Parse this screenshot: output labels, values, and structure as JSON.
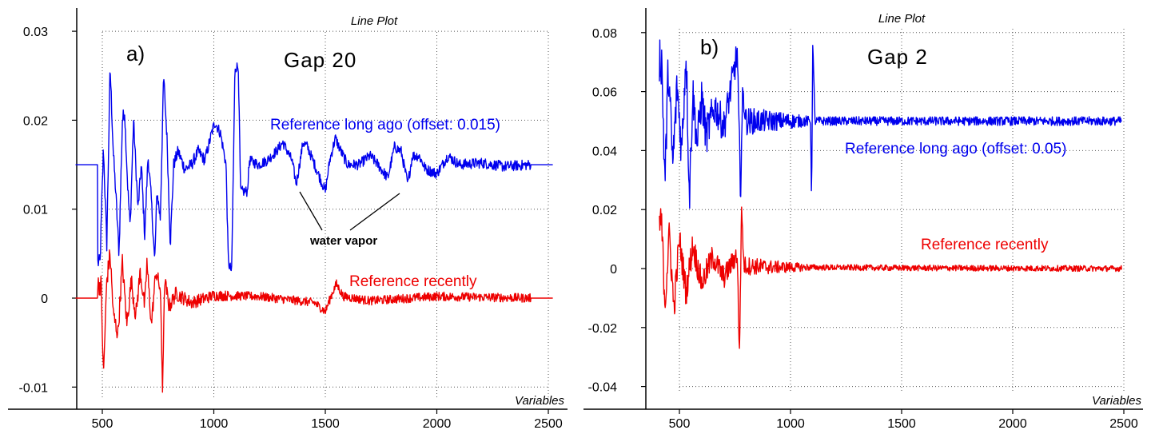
{
  "chart_data": [
    {
      "type": "line",
      "title": "Line Plot",
      "xlabel": "Variables",
      "ylabel": "",
      "panel_label": "a)",
      "heading": "Gap 20",
      "xlim": [
        380,
        2520
      ],
      "ylim": [
        -0.0125,
        0.031
      ],
      "x_ticks": [
        500,
        1000,
        1500,
        2000,
        2500
      ],
      "y_ticks": [
        -0.01,
        0,
        0.01,
        0.02,
        0.03
      ],
      "y_tick_labels": [
        "-0.01",
        "0",
        "0.01",
        "0.02",
        "0.03"
      ],
      "grid": true,
      "series": [
        {
          "label": "Reference long ago (offset: 0.015)",
          "color": "#0000ee",
          "baseline": 0.015,
          "x_range": [
            380,
            2520
          ],
          "flat_before": 480,
          "flat_after": 2420,
          "features": [
            [
              490,
              0.004
            ],
            [
              505,
              0.017
            ],
            [
              520,
              0.006
            ],
            [
              535,
              0.026
            ],
            [
              550,
              0.016
            ],
            [
              560,
              0.012
            ],
            [
              575,
              0.005
            ],
            [
              590,
              0.02
            ],
            [
              600,
              0.021
            ],
            [
              615,
              0.012
            ],
            [
              625,
              0.008
            ],
            [
              640,
              0.02
            ],
            [
              660,
              0.01
            ],
            [
              675,
              0.015
            ],
            [
              690,
              0.007
            ],
            [
              705,
              0.016
            ],
            [
              720,
              0.011
            ],
            [
              735,
              0.004
            ],
            [
              745,
              0.012
            ],
            [
              760,
              0.009
            ],
            [
              775,
              0.025
            ],
            [
              790,
              0.018
            ],
            [
              805,
              0.006
            ],
            [
              820,
              0.015
            ],
            [
              840,
              0.0165
            ],
            [
              870,
              0.0145
            ],
            [
              900,
              0.015
            ],
            [
              930,
              0.0165
            ],
            [
              960,
              0.0155
            ],
            [
              990,
              0.0185
            ],
            [
              1005,
              0.0198
            ],
            [
              1030,
              0.0185
            ],
            [
              1055,
              0.015
            ],
            [
              1065,
              0.004
            ],
            [
              1080,
              0.003
            ],
            [
              1095,
              0.026
            ],
            [
              1110,
              0.026
            ],
            [
              1120,
              0.012
            ],
            [
              1150,
              0.012
            ],
            [
              1160,
              0.0155
            ],
            [
              1200,
              0.015
            ],
            [
              1240,
              0.0155
            ],
            [
              1280,
              0.0165
            ],
            [
              1310,
              0.0175
            ],
            [
              1350,
              0.0155
            ],
            [
              1370,
              0.0128
            ],
            [
              1400,
              0.0175
            ],
            [
              1420,
              0.017
            ],
            [
              1460,
              0.0145
            ],
            [
              1500,
              0.012
            ],
            [
              1520,
              0.0155
            ],
            [
              1545,
              0.018
            ],
            [
              1570,
              0.0165
            ],
            [
              1600,
              0.015
            ],
            [
              1650,
              0.015
            ],
            [
              1700,
              0.016
            ],
            [
              1730,
              0.0152
            ],
            [
              1780,
              0.0135
            ],
            [
              1810,
              0.017
            ],
            [
              1840,
              0.0165
            ],
            [
              1870,
              0.0128
            ],
            [
              1890,
              0.016
            ],
            [
              1920,
              0.016
            ],
            [
              1950,
              0.0145
            ],
            [
              2000,
              0.014
            ],
            [
              2050,
              0.016
            ],
            [
              2100,
              0.015
            ],
            [
              2200,
              0.0152
            ],
            [
              2300,
              0.0148
            ],
            [
              2420,
              0.015
            ]
          ],
          "noise": 0.0009,
          "noise_tail": 0.0006
        },
        {
          "label": "Reference recently",
          "color": "#ee0000",
          "baseline": 0,
          "x_range": [
            380,
            2520
          ],
          "flat_before": 480,
          "flat_after": 2420,
          "features": [
            [
              495,
              0.0015
            ],
            [
              505,
              -0.009
            ],
            [
              520,
              0.002
            ],
            [
              535,
              0.005
            ],
            [
              550,
              -0.002
            ],
            [
              570,
              -0.004
            ],
            [
              590,
              0.004
            ],
            [
              610,
              -0.003
            ],
            [
              630,
              0.002
            ],
            [
              650,
              -0.002
            ],
            [
              670,
              0.003
            ],
            [
              690,
              -0.001
            ],
            [
              700,
              0.004
            ],
            [
              720,
              -0.003
            ],
            [
              740,
              0.003
            ],
            [
              760,
              0.001
            ],
            [
              770,
              -0.01
            ],
            [
              780,
              0.002
            ],
            [
              800,
              -0.001
            ],
            [
              830,
              0.0005
            ],
            [
              900,
              -0.0005
            ],
            [
              1000,
              0.0003
            ],
            [
              1200,
              0.0002
            ],
            [
              1450,
              -0.0005
            ],
            [
              1500,
              -0.0015
            ],
            [
              1530,
              0.0005
            ],
            [
              1550,
              0.0016
            ],
            [
              1580,
              0.0002
            ],
            [
              1700,
              -0.0003
            ],
            [
              2000,
              0.0002
            ],
            [
              2420,
              0
            ]
          ],
          "noise": 0.0012,
          "noise_tail": 0.0005
        }
      ],
      "annotations": [
        {
          "text": "water vapor",
          "pointers_to": [
            [
              1370,
              0.0128
            ],
            [
              1870,
              0.0128
            ]
          ]
        }
      ]
    },
    {
      "type": "line",
      "title": "Line Plot",
      "xlabel": "Variables",
      "ylabel": "",
      "panel_label": "b)",
      "heading": "Gap 2",
      "xlim": [
        380,
        2520
      ],
      "ylim": [
        -0.045,
        0.083
      ],
      "x_ticks": [
        500,
        1000,
        1500,
        2000,
        2500
      ],
      "y_ticks": [
        -0.04,
        -0.02,
        0,
        0.02,
        0.04,
        0.06,
        0.08
      ],
      "y_tick_labels": [
        "-0.04",
        "-0.02",
        "0",
        "0.02",
        "0.04",
        "0.06",
        "0.08"
      ],
      "grid": true,
      "series": [
        {
          "label": "Reference long ago (offset: 0.05)",
          "color": "#0000ee",
          "baseline": 0.05,
          "x_range": [
            410,
            2490
          ],
          "flat_before": 410,
          "flat_after": 2490,
          "features": [
            [
              420,
              0.071
            ],
            [
              435,
              0.029
            ],
            [
              450,
              0.068
            ],
            [
              470,
              0.035
            ],
            [
              490,
              0.062
            ],
            [
              510,
              0.04
            ],
            [
              530,
              0.074
            ],
            [
              545,
              0.024
            ],
            [
              560,
              0.06
            ],
            [
              580,
              0.042
            ],
            [
              600,
              0.058
            ],
            [
              620,
              0.045
            ],
            [
              660,
              0.055
            ],
            [
              700,
              0.048
            ],
            [
              760,
              0.073
            ],
            [
              775,
              0.026
            ],
            [
              785,
              0.06
            ],
            [
              800,
              0.05
            ],
            [
              1000,
              0.05
            ],
            [
              1090,
              0.05
            ],
            [
              1095,
              0.022
            ],
            [
              1100,
              0.077
            ],
            [
              1110,
              0.05
            ],
            [
              2490,
              0.05
            ]
          ],
          "noise": 0.009,
          "noise_tail": 0.0015
        },
        {
          "label": "Reference recently",
          "color": "#ee0000",
          "baseline": 0,
          "x_range": [
            410,
            2490
          ],
          "flat_before": 410,
          "flat_after": 2490,
          "features": [
            [
              420,
              0.015
            ],
            [
              435,
              -0.012
            ],
            [
              455,
              0.012
            ],
            [
              475,
              -0.014
            ],
            [
              500,
              0.01
            ],
            [
              530,
              -0.008
            ],
            [
              560,
              0.008
            ],
            [
              600,
              -0.005
            ],
            [
              650,
              0.004
            ],
            [
              700,
              -0.003
            ],
            [
              760,
              0.005
            ],
            [
              770,
              -0.029
            ],
            [
              780,
              0.021
            ],
            [
              790,
              0.001
            ],
            [
              900,
              0.0005
            ],
            [
              1500,
              0.0002
            ],
            [
              2490,
              0
            ]
          ],
          "noise": 0.006,
          "noise_tail": 0.001
        }
      ],
      "annotations": []
    }
  ]
}
